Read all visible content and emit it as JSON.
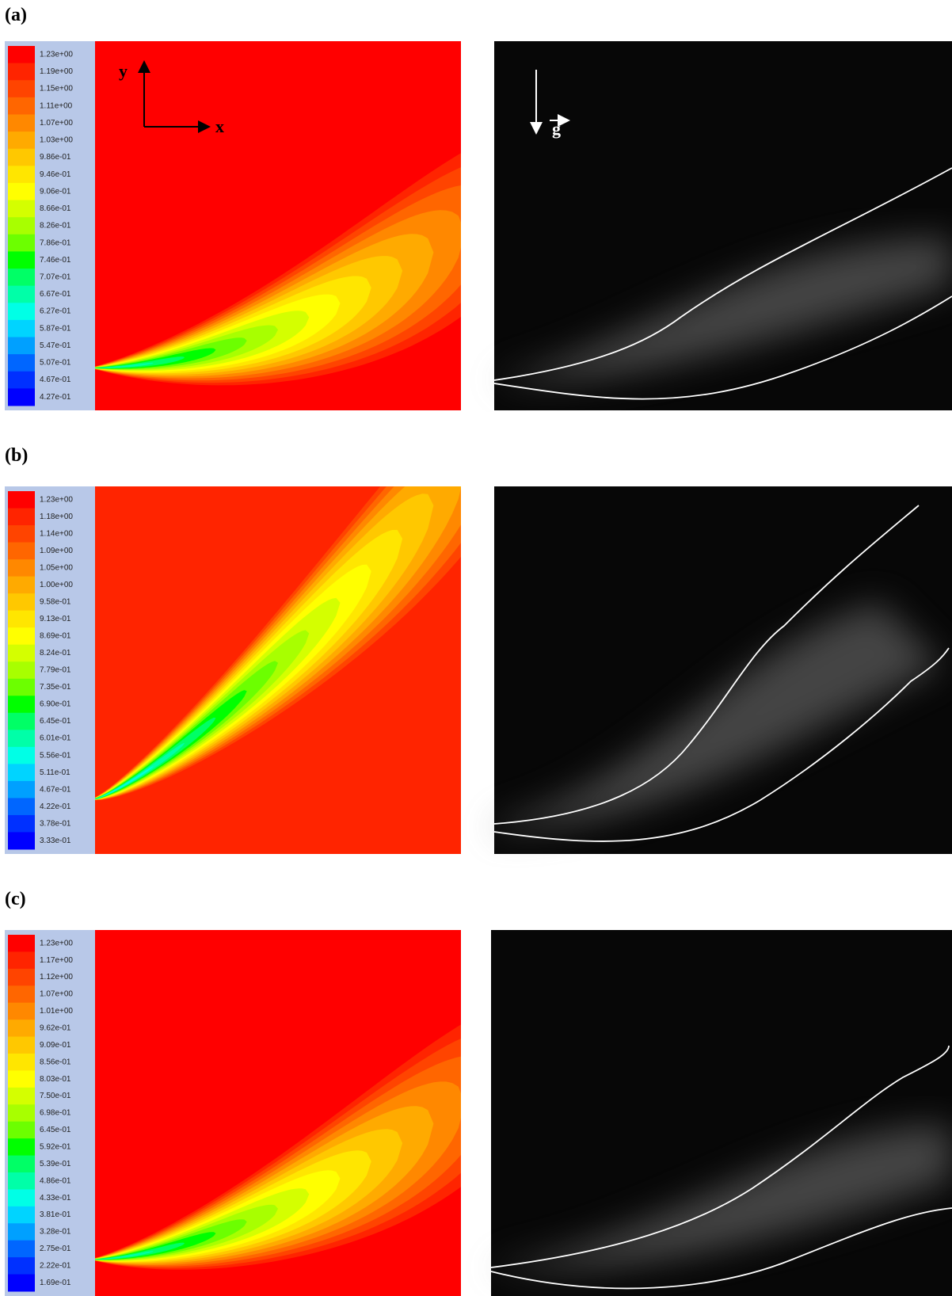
{
  "axes": {
    "y": "y",
    "x": "x",
    "g": "g"
  },
  "panels": [
    {
      "label": "(a)",
      "colorbar": [
        "1.23e+00",
        "1.19e+00",
        "1.15e+00",
        "1.11e+00",
        "1.07e+00",
        "1.03e+00",
        "9.86e-01",
        "9.46e-01",
        "9.06e-01",
        "8.66e-01",
        "8.26e-01",
        "7.86e-01",
        "7.46e-01",
        "7.07e-01",
        "6.67e-01",
        "6.27e-01",
        "5.87e-01",
        "5.47e-01",
        "5.07e-01",
        "4.67e-01",
        "4.27e-01"
      ]
    },
    {
      "label": "(b)",
      "colorbar": [
        "1.23e+00",
        "1.18e+00",
        "1.14e+00",
        "1.09e+00",
        "1.05e+00",
        "1.00e+00",
        "9.58e-01",
        "9.13e-01",
        "8.69e-01",
        "8.24e-01",
        "7.79e-01",
        "7.35e-01",
        "6.90e-01",
        "6.45e-01",
        "6.01e-01",
        "5.56e-01",
        "5.11e-01",
        "4.67e-01",
        "4.22e-01",
        "3.78e-01",
        "3.33e-01"
      ]
    },
    {
      "label": "(c)",
      "colorbar": [
        "1.23e+00",
        "1.17e+00",
        "1.12e+00",
        "1.07e+00",
        "1.01e+00",
        "9.62e-01",
        "9.09e-01",
        "8.56e-01",
        "8.03e-01",
        "7.50e-01",
        "6.98e-01",
        "6.45e-01",
        "5.92e-01",
        "5.39e-01",
        "4.86e-01",
        "4.33e-01",
        "3.81e-01",
        "3.28e-01",
        "2.75e-01",
        "2.22e-01",
        "1.69e-01"
      ]
    }
  ]
}
